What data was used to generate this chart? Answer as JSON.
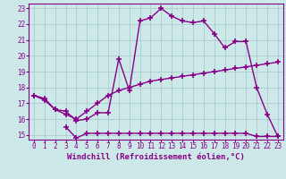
{
  "line1_x": [
    0,
    1,
    2,
    3,
    4,
    5,
    6,
    7,
    8,
    9,
    10,
    11,
    12,
    13,
    14,
    15,
    16,
    17,
    18,
    19,
    20,
    21,
    22,
    23
  ],
  "line1_y": [
    17.5,
    17.3,
    16.6,
    16.5,
    15.9,
    16.0,
    16.4,
    16.4,
    19.8,
    17.8,
    22.2,
    22.4,
    23.0,
    22.5,
    22.2,
    22.1,
    22.2,
    21.4,
    20.5,
    20.9,
    20.9,
    18.0,
    16.3,
    14.9
  ],
  "line2_x": [
    0,
    1,
    2,
    3,
    4,
    5,
    6,
    7,
    8,
    9,
    10,
    11,
    12,
    13,
    14,
    15,
    16,
    17,
    18,
    19,
    20,
    21,
    22,
    23
  ],
  "line2_y": [
    17.5,
    17.2,
    16.6,
    16.3,
    16.0,
    16.5,
    17.0,
    17.5,
    17.8,
    18.0,
    18.2,
    18.4,
    18.5,
    18.6,
    18.7,
    18.8,
    18.9,
    19.0,
    19.1,
    19.2,
    19.3,
    19.4,
    19.5,
    19.6
  ],
  "line3_x": [
    3,
    4,
    5,
    6,
    7,
    8,
    9,
    10,
    11,
    12,
    13,
    14,
    15,
    16,
    17,
    18,
    19,
    20,
    21,
    22,
    23
  ],
  "line3_y": [
    15.5,
    14.8,
    15.1,
    15.1,
    15.1,
    15.1,
    15.1,
    15.1,
    15.1,
    15.1,
    15.1,
    15.1,
    15.1,
    15.1,
    15.1,
    15.1,
    15.1,
    15.1,
    14.9,
    14.9,
    14.9
  ],
  "line_color": "#880088",
  "bg_color": "#cce8e8",
  "grid_color": "#aacccc",
  "xlabel": "Windchill (Refroidissement éolien,°C)",
  "xlim": [
    -0.5,
    23.5
  ],
  "ylim": [
    14.7,
    23.3
  ],
  "xticks": [
    0,
    1,
    2,
    3,
    4,
    5,
    6,
    7,
    8,
    9,
    10,
    11,
    12,
    13,
    14,
    15,
    16,
    17,
    18,
    19,
    20,
    21,
    22,
    23
  ],
  "yticks": [
    15,
    16,
    17,
    18,
    19,
    20,
    21,
    22,
    23
  ],
  "marker": "+",
  "markersize": 4,
  "linewidth": 1.0,
  "xlabel_fontsize": 6.5,
  "tick_fontsize": 5.5
}
